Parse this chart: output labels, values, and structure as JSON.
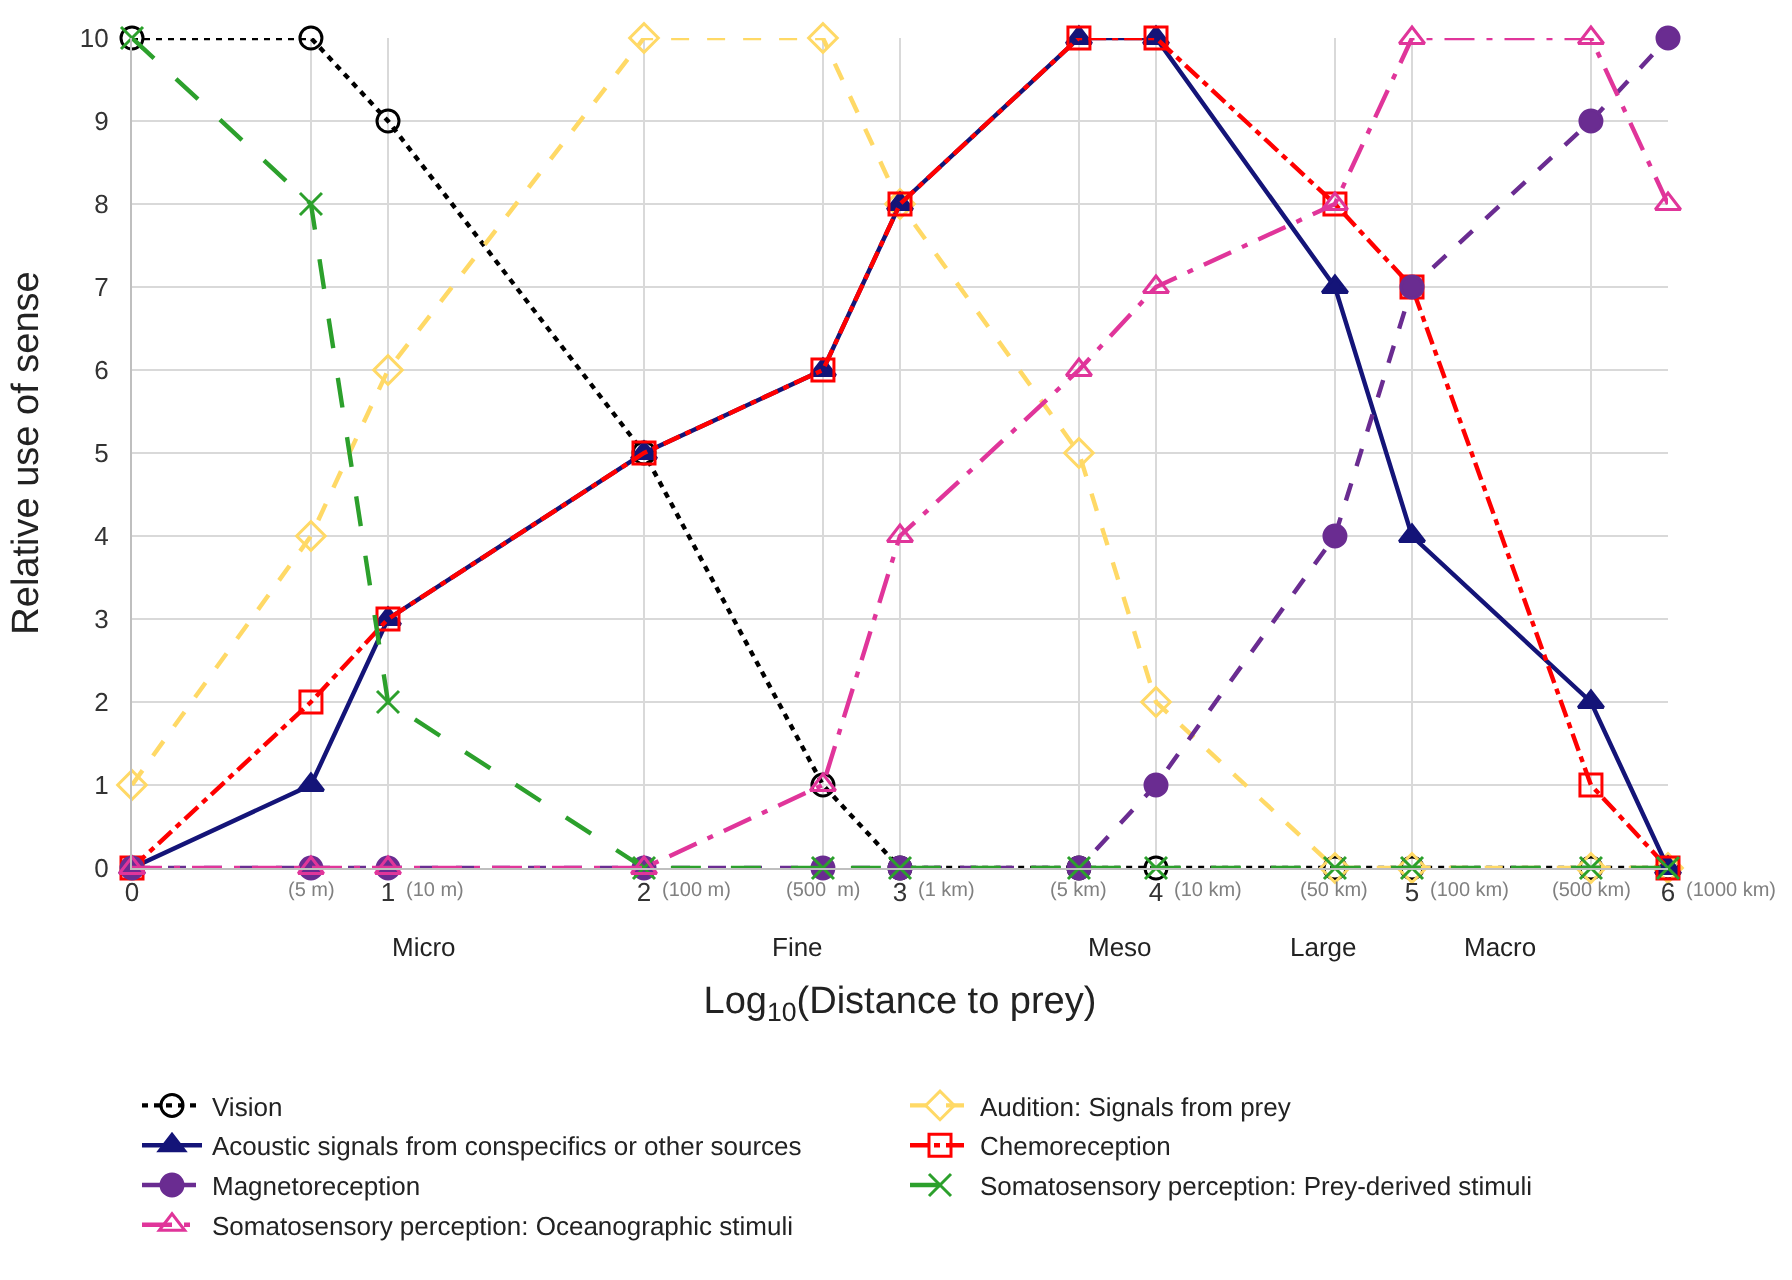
{
  "chart_data": {
    "type": "line",
    "xlabel": "Log$_{10}$(Distance to prey)",
    "ylabel": "Relative use of sense",
    "x": [
      0,
      0.699,
      1,
      2,
      2.699,
      3,
      3.699,
      4,
      4.699,
      5,
      5.699,
      6
    ],
    "xlim": [
      0,
      6
    ],
    "ylim": [
      0,
      10
    ],
    "xticks": [
      0,
      {
        "value": 0.699,
        "label": null
      },
      1,
      2,
      {
        "value": 2.699,
        "label": null
      },
      3,
      {
        "value": 3.699,
        "label": null
      },
      4,
      {
        "value": 4.699,
        "label": null
      },
      5,
      {
        "value": 5.699,
        "label": null
      },
      6
    ],
    "yticks": [
      0,
      1,
      2,
      3,
      4,
      5,
      6,
      7,
      8,
      9,
      10
    ],
    "grid": true,
    "legend": "bottom",
    "series": [
      {
        "name": "Vision",
        "color": "#000000",
        "marker": "circle-open",
        "line_style": "dotted",
        "values": [
          10,
          10,
          9,
          5,
          1,
          0,
          0,
          0,
          0,
          0,
          0,
          0
        ]
      },
      {
        "name": "Audition: Signals from prey",
        "color": "#ffd966",
        "marker": "diamond-open",
        "line_style": "dashed",
        "values": [
          1,
          4,
          6,
          10,
          10,
          8,
          5,
          2,
          0,
          0,
          0,
          0
        ]
      },
      {
        "name": "Acoustic signals from conspecifics or other sources",
        "color": "#141478",
        "marker": "triangle",
        "line_style": "solid",
        "values": [
          0,
          1,
          3,
          5,
          6,
          8,
          10,
          10,
          7,
          4,
          2,
          0
        ]
      },
      {
        "name": "Chemoreception",
        "color": "#ff0000",
        "marker": "square-open",
        "line_style": "dashdot",
        "values": [
          0,
          2,
          3,
          5,
          6,
          8,
          10,
          10,
          8,
          7,
          1,
          0
        ]
      },
      {
        "name": "Magnetoreception",
        "color": "#6a2c91",
        "marker": "circle",
        "line_style": "dashed",
        "values": [
          0,
          0,
          0,
          0,
          0,
          0,
          0,
          1,
          4,
          7,
          9,
          10
        ]
      },
      {
        "name": "Somatosensory perception: Prey-derived stimuli",
        "color": "#2ca02c",
        "marker": "cross",
        "line_style": "longdash",
        "values": [
          10,
          8,
          2,
          0,
          0,
          0,
          0,
          0,
          0,
          0,
          0,
          0
        ]
      },
      {
        "name": "Somatosensory perception: Oceanographic stimuli",
        "color": "#e0359a",
        "marker": "triangle-open",
        "line_style": "dashdotdot",
        "values": [
          0,
          0,
          0,
          0,
          1,
          4,
          6,
          7,
          8,
          10,
          10,
          8
        ]
      }
    ],
    "annotations": [
      "(5 m)",
      "(10 m)",
      "(100 m)",
      "(500  m)",
      "(1 km)",
      "(5 km)",
      "(10 km)",
      "(50 km)",
      "(100 km)",
      "(500 km)",
      "(1000 km)",
      "Micro",
      "Fine",
      "Meso",
      "Large",
      "Macro"
    ]
  }
}
